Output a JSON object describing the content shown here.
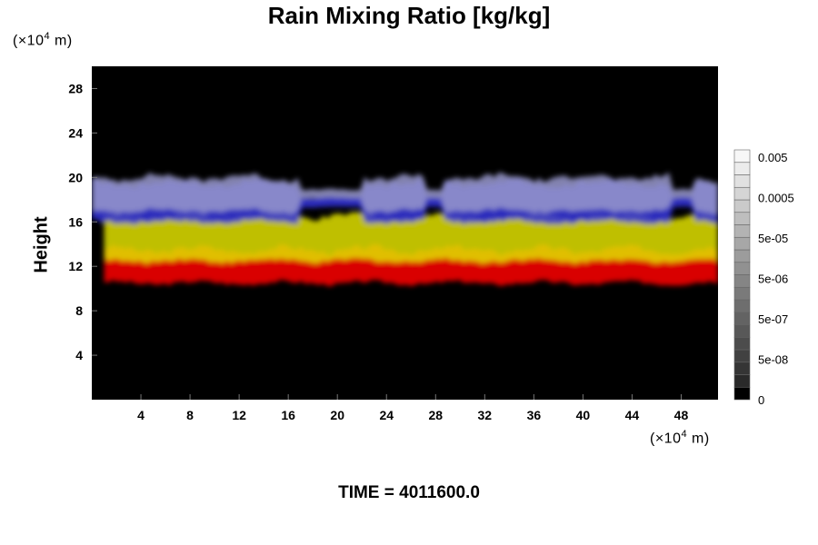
{
  "chart_data": {
    "type": "heatmap",
    "title": "Rain Mixing Ratio [kg/kg]",
    "ylabel": "Height",
    "y_unit": {
      "prefix": "(×10",
      "exp": "4",
      "suffix": " m)"
    },
    "x_unit": {
      "prefix": "(×10",
      "exp": "4",
      "suffix": " m)"
    },
    "x_ticks": [
      4,
      8,
      12,
      16,
      20,
      24,
      28,
      32,
      36,
      40,
      44,
      48
    ],
    "y_ticks": [
      4,
      8,
      12,
      16,
      20,
      24,
      28
    ],
    "xlim": [
      0,
      51
    ],
    "ylim": [
      0,
      30
    ],
    "colorbar": {
      "labels": [
        "0.005",
        "0.0005",
        "5e-05",
        "5e-06",
        "5e-07",
        "5e-08",
        "0"
      ],
      "label_values": [
        0.005,
        0.0005,
        5e-05,
        5e-06,
        5e-07,
        5e-08,
        0
      ],
      "levels": 20,
      "colors": [
        "#000000",
        "#ffffff"
      ]
    },
    "layers": [
      {
        "color": "#ff0000",
        "y_range": [
          10.5,
          13.5
        ],
        "x_range": [
          1,
          51
        ]
      },
      {
        "color": "#e0e000",
        "y_range": [
          12.5,
          16.5
        ],
        "x_range": [
          1,
          51
        ]
      },
      {
        "color": "#3333dd",
        "y_range": [
          16,
          19.5
        ],
        "x_range": [
          0,
          51
        ]
      },
      {
        "color": "#9999cc",
        "y_range": [
          17,
          20
        ],
        "x_range": [
          0,
          51
        ]
      }
    ],
    "background_color": "#000000"
  },
  "footer": {
    "time_label": "TIME",
    "time_separator": " = ",
    "time_value": "4011600.0"
  }
}
